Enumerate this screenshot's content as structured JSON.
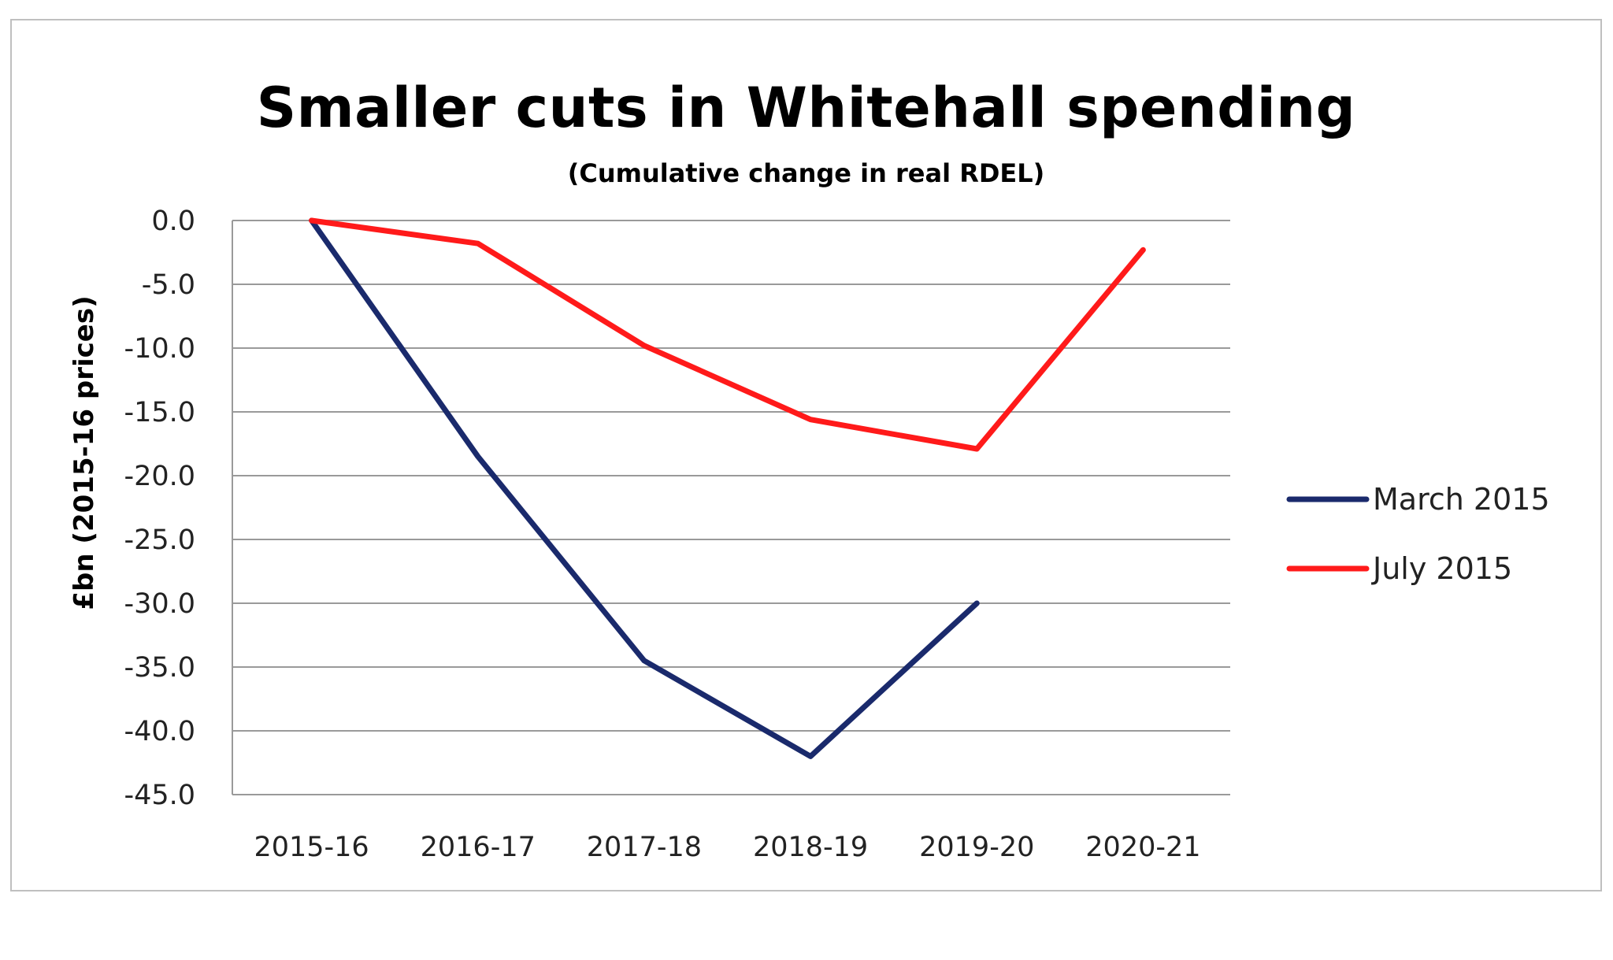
{
  "chart_data": {
    "type": "line",
    "title": "Smaller cuts in Whitehall spending",
    "subtitle": "(Cumulative change in real RDEL)",
    "ylabel": "£bn (2015-16 prices)",
    "xlabel": "",
    "categories": [
      "2015-16",
      "2016-17",
      "2017-18",
      "2018-19",
      "2019-20",
      "2020-21"
    ],
    "ylim": [
      -45,
      0
    ],
    "yticks": [
      "0.0",
      "-5.0",
      "-10.0",
      "-15.0",
      "-20.0",
      "-25.0",
      "-30.0",
      "-35.0",
      "-40.0",
      "-45.0"
    ],
    "grid": true,
    "legend_position": "right",
    "series": [
      {
        "name": "March 2015",
        "color": "#1a2a6c",
        "values": [
          0,
          -18.5,
          -34.5,
          -42,
          -30,
          null
        ]
      },
      {
        "name": "July 2015",
        "color": "#ff1a1a",
        "values": [
          0,
          -1.8,
          -9.8,
          -15.6,
          -17.9,
          -2.3
        ]
      }
    ]
  }
}
